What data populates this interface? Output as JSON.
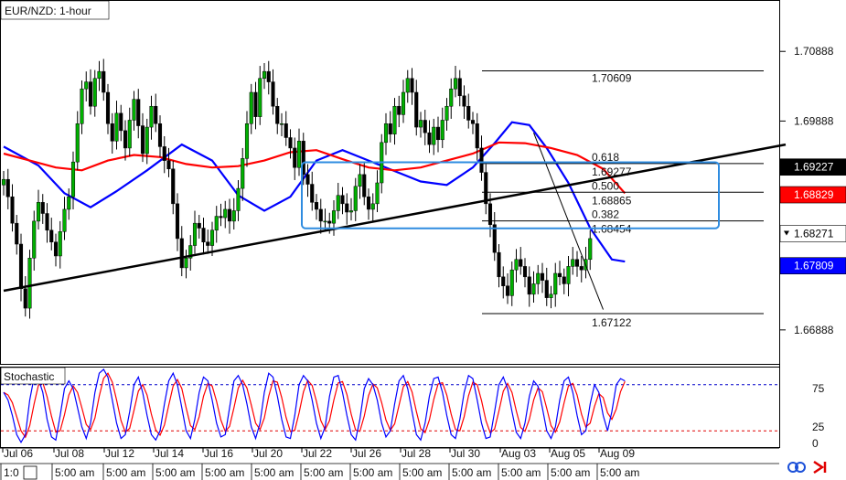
{
  "title": "EUR/NZD: 1-hour",
  "chart_data": {
    "type": "candlestick",
    "title": "EUR/NZD: 1-hour",
    "ylim": [
      1.664,
      1.716
    ],
    "ytick_labels": [
      "1.70888",
      "1.69888",
      "1.66888"
    ],
    "ytick_values": [
      1.70888,
      1.69888,
      1.66888
    ],
    "price_tags": [
      {
        "value": 1.69227,
        "label": "1.69227",
        "bg": "#000000",
        "fg": "#ffffff"
      },
      {
        "value": 1.68829,
        "label": "1.68829",
        "bg": "#ff0000",
        "fg": "#ffffff"
      },
      {
        "value": 1.68271,
        "label": "1.68271",
        "bg": "#ffffff",
        "fg": "#000000"
      },
      {
        "value": 1.67809,
        "label": "1.67809",
        "bg": "#0000ff",
        "fg": "#ffffff"
      }
    ],
    "x_date_labels": [
      "Jul 06",
      "Jul 08",
      "Jul 12",
      "Jul 14",
      "Jul 16",
      "Jul 20",
      "Jul 22",
      "Jul 26",
      "Jul 28",
      "Jul 30",
      "Aug 03",
      "Aug 05",
      "Aug 09"
    ],
    "x_time_labels": [
      "1:0",
      "5:00 am",
      "5:00 am",
      "5:00 am",
      "5:00 am",
      "5:00 am",
      "5:00 am",
      "5:00 am",
      "5:00 am",
      "5:00 am",
      "5:00 am",
      "5:00 am",
      "5:00 am"
    ],
    "fibonacci": {
      "high": 1.70609,
      "low": 1.67122,
      "levels": [
        {
          "ratio": "0.618",
          "price": "1.69277",
          "value": 1.69277
        },
        {
          "ratio": "0.500",
          "price": "1.68865",
          "value": 1.68865
        },
        {
          "ratio": "0.382",
          "price": "1.68454",
          "value": 1.68454
        }
      ],
      "high_label": "1.70609",
      "low_label": "1.67122"
    },
    "close_series": [
      1.6905,
      1.688,
      1.6842,
      1.6812,
      1.6748,
      1.672,
      1.6792,
      1.6845,
      1.6872,
      1.6856,
      1.6832,
      1.6815,
      1.6795,
      1.683,
      1.6862,
      1.688,
      1.693,
      1.6985,
      1.7035,
      1.7045,
      1.701,
      1.705,
      1.706,
      1.703,
      1.6985,
      1.696,
      1.7,
      1.6975,
      1.695,
      1.699,
      1.702,
      1.6982,
      1.6942,
      1.698,
      1.701,
      1.6985,
      1.6952,
      1.6932,
      1.692,
      1.687,
      1.682,
      1.6778,
      1.6792,
      1.681,
      1.6842,
      1.6835,
      1.6815,
      1.681,
      1.6832,
      1.6852,
      1.685,
      1.6862,
      1.6845,
      1.686,
      1.6892,
      1.6935,
      1.6985,
      1.703,
      1.6995,
      1.705,
      1.706,
      1.7045,
      1.701,
      1.6985,
      1.6985,
      1.6965,
      1.695,
      1.6922,
      1.696,
      1.6912,
      1.6898,
      1.6872,
      1.6862,
      1.6845,
      1.6845,
      1.6842,
      1.686,
      1.6882,
      1.687,
      1.6858,
      1.686,
      1.6895,
      1.6912,
      1.688,
      1.6862,
      1.687,
      1.69,
      1.6958,
      1.6985,
      1.697,
      1.701,
      1.6998,
      1.703,
      1.705,
      1.703,
      1.698,
      1.699,
      1.6972,
      1.6955,
      1.698,
      1.6962,
      1.699,
      1.701,
      1.7035,
      1.705,
      1.7025,
      1.701,
      1.699,
      1.6985,
      1.695,
      1.6915,
      1.687,
      1.684,
      1.68,
      1.6765,
      1.6752,
      1.6738,
      1.6775,
      1.679,
      1.678,
      1.6765,
      1.674,
      1.6755,
      1.677,
      1.676,
      1.6735,
      1.674,
      1.677,
      1.6765,
      1.6755,
      1.678,
      1.679,
      1.678,
      1.6775,
      1.679,
      1.682
    ],
    "ma_series": [
      {
        "name": "",
        "color": "#0000ff",
        "points": [
          [
            0,
            1.6952
          ],
          [
            8,
            1.6925
          ],
          [
            14,
            1.6885
          ],
          [
            20,
            1.6865
          ],
          [
            26,
            1.6888
          ],
          [
            33,
            1.6918
          ],
          [
            41,
            1.6955
          ],
          [
            48,
            1.6932
          ],
          [
            54,
            1.6882
          ],
          [
            60,
            1.686
          ],
          [
            66,
            1.688
          ],
          [
            72,
            1.6932
          ],
          [
            78,
            1.6947
          ],
          [
            84,
            1.6932
          ],
          [
            90,
            1.6917
          ],
          [
            96,
            1.6902
          ],
          [
            102,
            1.6897
          ],
          [
            108,
            1.6922
          ],
          [
            113,
            1.6957
          ],
          [
            117,
            1.6987
          ],
          [
            121,
            1.6983
          ],
          [
            125,
            1.695
          ],
          [
            130,
            1.69
          ],
          [
            135,
            1.6835
          ],
          [
            140,
            1.679
          ],
          [
            143,
            1.6787
          ]
        ]
      },
      {
        "name": "",
        "color": "#ff0000",
        "points": [
          [
            0,
            1.6942
          ],
          [
            6,
            1.6932
          ],
          [
            12,
            1.6922
          ],
          [
            18,
            1.6918
          ],
          [
            24,
            1.6932
          ],
          [
            30,
            1.694
          ],
          [
            36,
            1.6937
          ],
          [
            42,
            1.6927
          ],
          [
            48,
            1.6922
          ],
          [
            54,
            1.6924
          ],
          [
            60,
            1.6932
          ],
          [
            66,
            1.6944
          ],
          [
            72,
            1.6947
          ],
          [
            78,
            1.6934
          ],
          [
            84,
            1.6922
          ],
          [
            90,
            1.6918
          ],
          [
            96,
            1.6922
          ],
          [
            102,
            1.6932
          ],
          [
            108,
            1.6942
          ],
          [
            114,
            1.6958
          ],
          [
            120,
            1.6957
          ],
          [
            126,
            1.695
          ],
          [
            132,
            1.694
          ],
          [
            138,
            1.692
          ],
          [
            143,
            1.6885
          ]
        ]
      }
    ],
    "trendlines": [
      {
        "from": [
          0,
          1.6745
        ],
        "to": [
          180,
          1.6955
        ],
        "color": "#000000"
      },
      {
        "from": [
          122,
          1.6972
        ],
        "to": [
          138,
          1.6718
        ],
        "color": "#000000"
      }
    ],
    "stochastic": {
      "label": "Stochastic",
      "ytick_labels": [
        "75",
        "25",
        "0"
      ],
      "ytick_values": [
        75,
        25,
        0
      ],
      "levels": [
        80,
        20
      ],
      "k": [
        70,
        60,
        40,
        15,
        5,
        15,
        60,
        90,
        88,
        70,
        35,
        12,
        8,
        40,
        75,
        85,
        75,
        50,
        25,
        10,
        30,
        70,
        95,
        100,
        90,
        60,
        30,
        10,
        15,
        45,
        80,
        90,
        70,
        40,
        15,
        8,
        20,
        55,
        85,
        95,
        80,
        50,
        20,
        10,
        35,
        70,
        90,
        85,
        60,
        30,
        12,
        15,
        50,
        85,
        92,
        80,
        55,
        25,
        10,
        30,
        70,
        95,
        90,
        65,
        35,
        12,
        10,
        40,
        80,
        92,
        85,
        60,
        30,
        10,
        25,
        65,
        90,
        92,
        70,
        40,
        15,
        8,
        35,
        75,
        88,
        80,
        60,
        30,
        12,
        20,
        55,
        85,
        92,
        75,
        45,
        15,
        8,
        30,
        65,
        88,
        90,
        70,
        40,
        15,
        10,
        35,
        70,
        92,
        88,
        60,
        30,
        10,
        12,
        45,
        80,
        90,
        75,
        45,
        18,
        10,
        30,
        65,
        85,
        78,
        50,
        20,
        10,
        25,
        60,
        85,
        90,
        70,
        40,
        15,
        20,
        55,
        80,
        70,
        40,
        20,
        45,
        80,
        88,
        85
      ]
    }
  }
}
